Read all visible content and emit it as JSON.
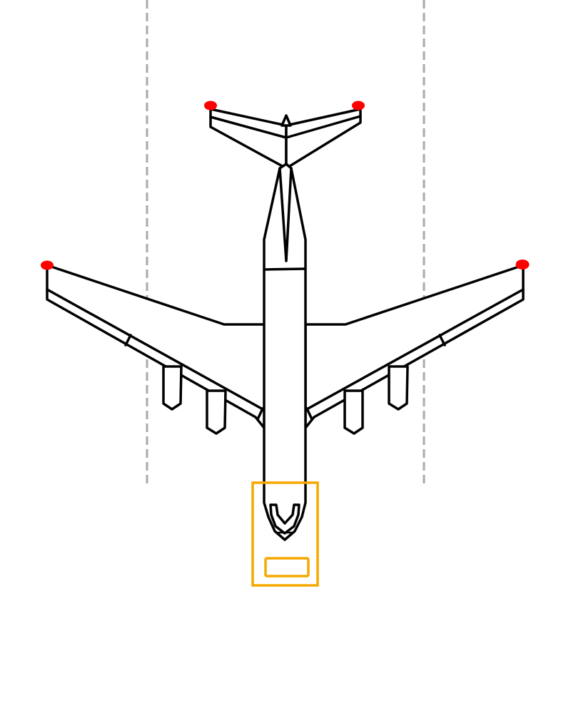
{
  "diagram": {
    "subject": "aircraft-top-view",
    "colors": {
      "outline": "#000000",
      "fill": "#ffffff",
      "guide_lines": "#aaaaaa",
      "nav_lights": "#ff0000",
      "tug_box": "#f5a800"
    },
    "elements": {
      "guide_lines": 2,
      "nav_lights": 4,
      "engines": 4,
      "tug_box": 1
    }
  }
}
